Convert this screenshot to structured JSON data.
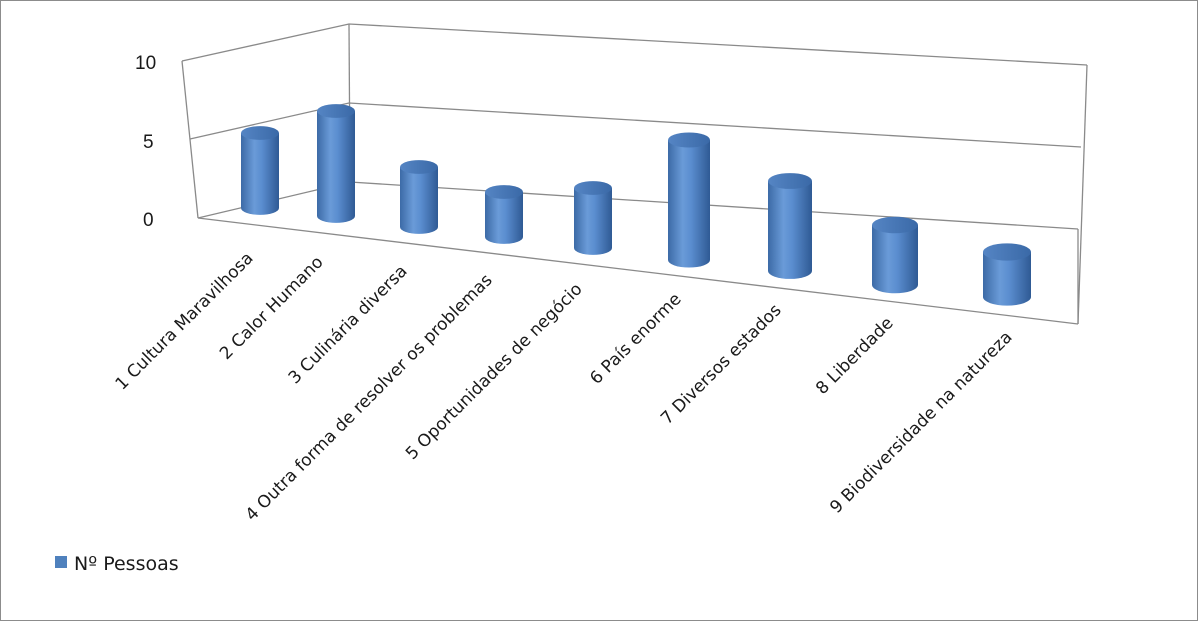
{
  "chart_data": {
    "type": "bar",
    "style": "3d-cylinder",
    "categories": [
      "1 Cultura Maravilhosa",
      "2 Calor Humano",
      "3 Culinária diversa",
      "4 Outra forma de resolver os problemas",
      "5 Oportunidades de negócio",
      "6 País enorme",
      "7 Diversos estados",
      "8 Liberdade",
      "9 Biodiversidade na natureza"
    ],
    "series": [
      {
        "name": "Nº Pessoas",
        "values": [
          5,
          7,
          4,
          3,
          4,
          8,
          6,
          4,
          3
        ],
        "color": "#4f81bd"
      }
    ],
    "yticks": [
      "0",
      "5",
      "10"
    ],
    "ylim": [
      0,
      10
    ],
    "grid": true,
    "legend": "bottom-left"
  }
}
